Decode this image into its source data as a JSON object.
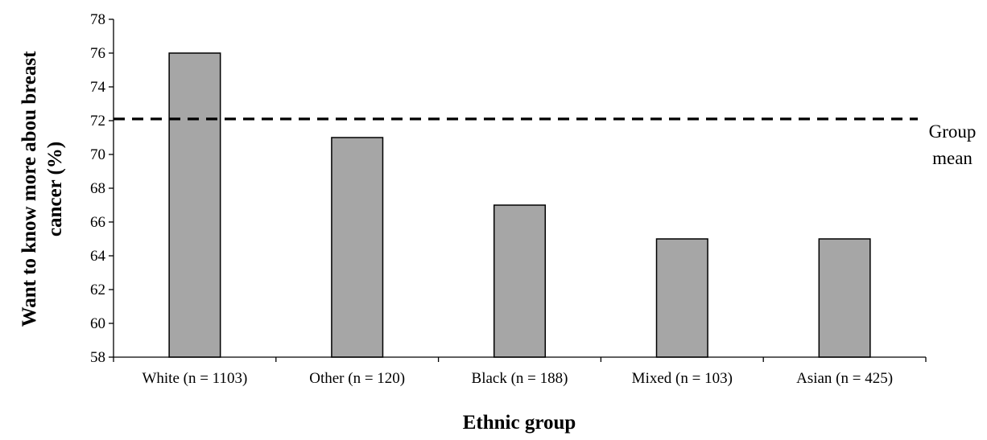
{
  "chart_data": {
    "type": "bar",
    "categories": [
      "White (n = 1103)",
      "Other (n = 120)",
      "Black (n = 188)",
      "Mixed (n = 103)",
      "Asian (n = 425)"
    ],
    "values": [
      76,
      71,
      67,
      65,
      65
    ],
    "xlabel": "Ethnic group",
    "ylabel_lines": [
      "Want to know more abou breast",
      "cancer (%)"
    ],
    "ylim": [
      58,
      78
    ],
    "yticks": [
      58,
      60,
      62,
      64,
      66,
      68,
      70,
      72,
      74,
      76,
      78
    ],
    "grid": false,
    "bar_color": "#a6a6a6",
    "reference_line": {
      "value": 72.1,
      "style": "dashed",
      "label_lines": [
        "Group",
        "mean"
      ]
    }
  }
}
